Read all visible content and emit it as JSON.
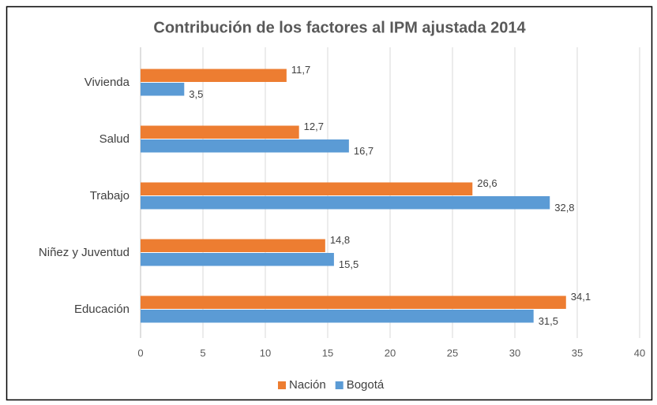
{
  "chart_data": {
    "type": "barh",
    "title": "Contribución de los factores al IPM ajustada 2014",
    "categories": [
      "Vivienda",
      "Salud",
      "Trabajo",
      "Niñez y Juventud",
      "Educación"
    ],
    "series": [
      {
        "name": "Nación",
        "color": "#ED7D31",
        "values": [
          11.7,
          12.7,
          26.6,
          14.8,
          34.1
        ],
        "value_labels": [
          "11,7",
          "12,7",
          "26,6",
          "14,8",
          "34,1"
        ]
      },
      {
        "name": "Bogotá",
        "color": "#5B9BD5",
        "values": [
          3.5,
          16.7,
          32.8,
          15.5,
          31.5
        ],
        "value_labels": [
          "3,5",
          "16,7",
          "32,8",
          "15,5",
          "31,5"
        ]
      }
    ],
    "xlim": [
      0,
      40
    ],
    "xticks": [
      0,
      5,
      10,
      15,
      20,
      25,
      30,
      35,
      40
    ],
    "grid": true,
    "legend": "bottom"
  }
}
